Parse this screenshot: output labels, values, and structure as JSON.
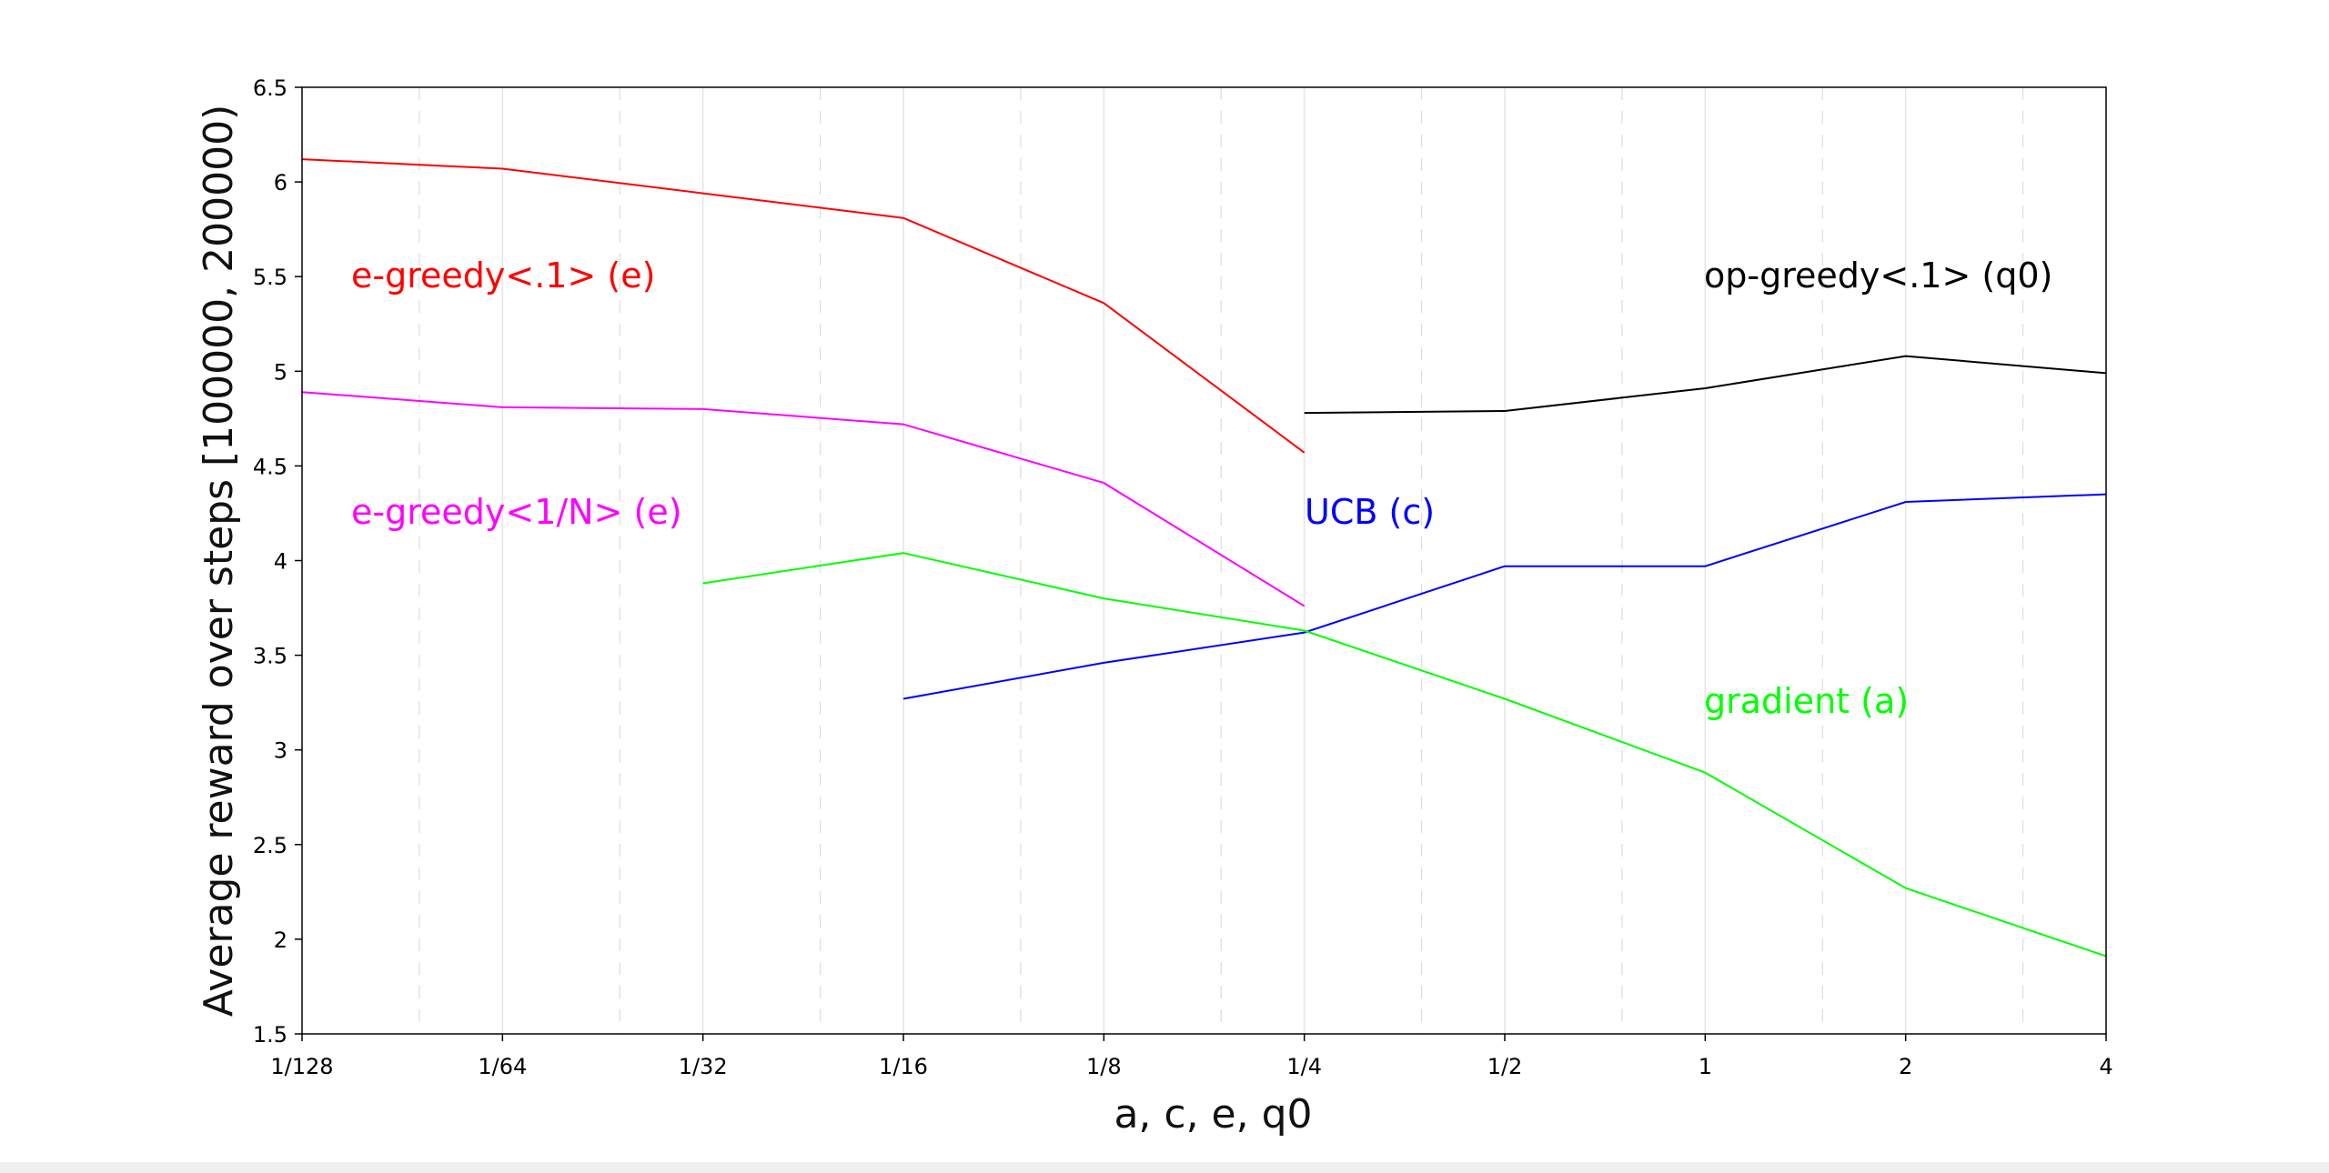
{
  "chart_data": {
    "type": "line",
    "title": "",
    "xlabel": "a, c, e, q0",
    "ylabel": "Average reward over steps [100000, 200000)",
    "x_scale": "log2",
    "x_ticks": [
      "1/128",
      "1/64",
      "1/32",
      "1/16",
      "1/8",
      "1/4",
      "1/2",
      "1",
      "2",
      "4"
    ],
    "y_ticks": [
      "1.5",
      "2",
      "2.5",
      "3",
      "3.5",
      "4",
      "4.5",
      "5",
      "5.5",
      "6",
      "6.5"
    ],
    "ylim": [
      1.5,
      6.5
    ],
    "grid": true,
    "legend": "inline labels",
    "series": [
      {
        "name": "e-greedy<.1> (e)",
        "color": "#ff0000",
        "points": [
          [
            "1/128",
            6.12
          ],
          [
            "1/64",
            6.07
          ],
          [
            "1/32",
            5.94
          ],
          [
            "1/16",
            5.81
          ],
          [
            "1/8",
            5.36
          ],
          [
            "1/4",
            4.57
          ]
        ]
      },
      {
        "name": "e-greedy<1/N> (e)",
        "color": "#ff00ff",
        "points": [
          [
            "1/128",
            4.89
          ],
          [
            "1/64",
            4.81
          ],
          [
            "1/32",
            4.8
          ],
          [
            "1/16",
            4.72
          ],
          [
            "1/8",
            4.41
          ],
          [
            "1/4",
            3.76
          ]
        ]
      },
      {
        "name": "UCB (c)",
        "color": "#0000ff",
        "points": [
          [
            "1/16",
            3.27
          ],
          [
            "1/8",
            3.46
          ],
          [
            "1/4",
            3.62
          ],
          [
            "1/2",
            3.97
          ],
          [
            "1",
            3.97
          ],
          [
            "2",
            4.31
          ],
          [
            "4",
            4.35
          ]
        ]
      },
      {
        "name": "gradient (a)",
        "color": "#00ff00",
        "points": [
          [
            "1/32",
            3.88
          ],
          [
            "1/16",
            4.04
          ],
          [
            "1/8",
            3.8
          ],
          [
            "1/4",
            3.63
          ],
          [
            "1/2",
            3.27
          ],
          [
            "1",
            2.88
          ],
          [
            "2",
            2.27
          ],
          [
            "4",
            1.91
          ]
        ]
      },
      {
        "name": "op-greedy<.1> (q0)",
        "color": "#000000",
        "points": [
          [
            "1/4",
            4.78
          ],
          [
            "1/2",
            4.79
          ],
          [
            "1",
            4.91
          ],
          [
            "2",
            5.08
          ],
          [
            "4",
            4.99
          ]
        ]
      }
    ]
  }
}
